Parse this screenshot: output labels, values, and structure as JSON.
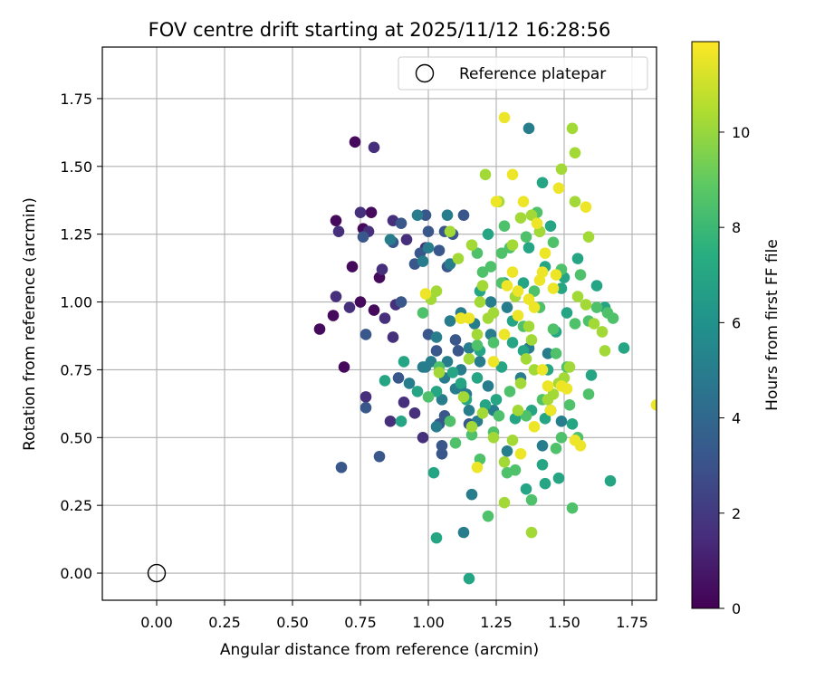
{
  "chart_data": {
    "type": "scatter",
    "title": "FOV centre drift starting at 2025/11/12 16:28:56",
    "xlabel": "Angular distance from reference (arcmin)",
    "ylabel": "Rotation from reference (arcmin)",
    "xlim": [
      -0.2,
      1.84
    ],
    "ylim": [
      -0.1,
      1.94
    ],
    "xticks": [
      "0.00",
      "0.25",
      "0.50",
      "0.75",
      "1.00",
      "1.25",
      "1.50",
      "1.75"
    ],
    "yticks": [
      "0.00",
      "0.25",
      "0.50",
      "0.75",
      "1.00",
      "1.25",
      "1.50",
      "1.75"
    ],
    "grid": true,
    "legend": {
      "position": "top-right",
      "label": "Reference platepar"
    },
    "reference_point": {
      "x": 0.0,
      "y": 0.0
    },
    "colorbar": {
      "label": "Hours from first FF file",
      "range": [
        0,
        11.9
      ],
      "ticks": [
        "0",
        "2",
        "4",
        "6",
        "8",
        "10"
      ],
      "colormap": "viridis"
    },
    "series": [
      {
        "color_value": 0.3,
        "points": [
          [
            0.6,
            0.9
          ],
          [
            0.69,
            0.76
          ],
          [
            0.73,
            1.59
          ],
          [
            0.66,
            1.3
          ],
          [
            0.72,
            1.13
          ],
          [
            0.75,
            1.0
          ],
          [
            0.65,
            0.95
          ],
          [
            0.79,
            1.33
          ],
          [
            0.82,
            1.09
          ],
          [
            0.8,
            0.97
          ],
          [
            0.76,
            1.27
          ]
        ]
      },
      {
        "color_value": 1.6,
        "points": [
          [
            0.8,
            1.57
          ],
          [
            0.75,
            1.33
          ],
          [
            0.78,
            1.26
          ],
          [
            0.67,
            1.26
          ],
          [
            0.71,
            0.98
          ],
          [
            0.66,
            1.02
          ],
          [
            0.87,
            1.3
          ],
          [
            0.83,
            1.12
          ],
          [
            0.92,
            1.23
          ],
          [
            0.99,
            1.2
          ],
          [
            0.88,
            0.99
          ],
          [
            0.84,
            0.94
          ],
          [
            0.87,
            0.87
          ],
          [
            0.98,
            0.5
          ],
          [
            0.95,
            0.59
          ],
          [
            0.86,
            0.56
          ],
          [
            0.91,
            0.63
          ],
          [
            0.77,
            0.65
          ]
        ]
      },
      {
        "color_value": 3.2,
        "points": [
          [
            0.68,
            0.39
          ],
          [
            0.82,
            0.43
          ],
          [
            0.77,
            0.61
          ],
          [
            0.77,
            0.88
          ],
          [
            0.76,
            1.24
          ],
          [
            0.87,
            1.22
          ],
          [
            0.9,
            1.29
          ],
          [
            0.99,
            1.32
          ],
          [
            1.0,
            1.26
          ],
          [
            1.04,
            1.19
          ],
          [
            1.06,
            1.26
          ],
          [
            1.09,
            1.25
          ],
          [
            1.13,
            1.32
          ],
          [
            1.07,
            1.13
          ],
          [
            0.95,
            1.14
          ],
          [
            0.97,
            1.18
          ],
          [
            1.0,
            0.88
          ],
          [
            1.03,
            0.82
          ],
          [
            1.1,
            0.86
          ],
          [
            1.06,
            0.58
          ],
          [
            1.04,
            0.55
          ],
          [
            1.05,
            0.47
          ],
          [
            1.05,
            0.44
          ],
          [
            1.11,
            0.82
          ],
          [
            1.15,
            0.55
          ],
          [
            0.89,
            0.72
          ],
          [
            0.9,
            1.0
          ]
        ]
      },
      {
        "color_value": 5.0,
        "points": [
          [
            1.13,
            0.15
          ],
          [
            1.16,
            0.29
          ],
          [
            1.37,
            1.64
          ],
          [
            0.86,
            1.23
          ],
          [
            0.96,
            1.32
          ],
          [
            1.0,
            1.2
          ],
          [
            1.08,
            1.14
          ],
          [
            1.07,
            1.32
          ],
          [
            0.98,
            1.15
          ],
          [
            1.12,
            0.96
          ],
          [
            1.08,
            0.93
          ],
          [
            1.03,
            0.87
          ],
          [
            0.99,
            0.76
          ],
          [
            1.07,
            0.78
          ],
          [
            1.12,
            0.75
          ],
          [
            1.1,
            0.68
          ],
          [
            1.14,
            0.66
          ],
          [
            1.05,
            0.64
          ],
          [
            1.15,
            0.6
          ],
          [
            1.03,
            0.54
          ],
          [
            1.15,
            0.83
          ],
          [
            1.19,
            0.78
          ],
          [
            1.22,
            0.69
          ],
          [
            1.18,
            0.56
          ],
          [
            1.24,
            0.6
          ],
          [
            1.29,
            0.45
          ],
          [
            1.34,
            0.72
          ],
          [
            1.42,
            0.47
          ],
          [
            1.45,
            0.6
          ],
          [
            1.29,
            0.98
          ],
          [
            1.17,
            0.92
          ],
          [
            1.23,
            1.0
          ],
          [
            1.37,
            0.83
          ],
          [
            1.44,
            0.81
          ],
          [
            1.49,
            0.56
          ],
          [
            0.93,
            0.7
          ],
          [
            0.98,
            0.76
          ],
          [
            1.06,
            0.72
          ],
          [
            1.01,
            0.78
          ],
          [
            1.12,
            0.69
          ],
          [
            1.23,
            0.88
          ]
        ]
      },
      {
        "color_value": 7.0,
        "points": [
          [
            1.02,
            0.37
          ],
          [
            1.03,
            0.13
          ],
          [
            1.15,
            -0.02
          ],
          [
            0.84,
            0.71
          ],
          [
            0.9,
            0.56
          ],
          [
            0.91,
            0.78
          ],
          [
            0.96,
            0.67
          ],
          [
            1.03,
            0.67
          ],
          [
            1.09,
            0.74
          ],
          [
            1.12,
            0.7
          ],
          [
            1.14,
            0.64
          ],
          [
            1.18,
            0.72
          ],
          [
            1.19,
            0.82
          ],
          [
            1.21,
            0.62
          ],
          [
            1.25,
            0.64
          ],
          [
            1.27,
            0.76
          ],
          [
            1.31,
            0.85
          ],
          [
            1.32,
            0.57
          ],
          [
            1.35,
            0.82
          ],
          [
            1.38,
            0.6
          ],
          [
            1.43,
            0.57
          ],
          [
            1.22,
            1.25
          ],
          [
            1.19,
            1.04
          ],
          [
            1.28,
            1.07
          ],
          [
            1.31,
            0.93
          ],
          [
            1.35,
            1.07
          ],
          [
            1.37,
            1.2
          ],
          [
            1.42,
            1.44
          ],
          [
            1.45,
            1.28
          ],
          [
            1.49,
            1.05
          ],
          [
            1.43,
            1.13
          ],
          [
            1.47,
            0.89
          ],
          [
            1.44,
            0.75
          ],
          [
            1.5,
            1.09
          ],
          [
            1.51,
            0.96
          ],
          [
            1.55,
            1.16
          ],
          [
            1.62,
            1.06
          ],
          [
            1.65,
            0.98
          ],
          [
            1.67,
            0.34
          ],
          [
            1.6,
            0.73
          ],
          [
            1.72,
            0.83
          ],
          [
            1.53,
            0.55
          ],
          [
            1.48,
            0.35
          ],
          [
            1.43,
            0.33
          ],
          [
            1.42,
            0.4
          ],
          [
            1.36,
            0.31
          ]
        ]
      },
      {
        "color_value": 8.5,
        "points": [
          [
            1.22,
            0.21
          ],
          [
            1.29,
            0.37
          ],
          [
            1.36,
            0.58
          ],
          [
            1.32,
            0.38
          ],
          [
            1.38,
            0.27
          ],
          [
            1.49,
            0.5
          ],
          [
            1.47,
            0.46
          ],
          [
            1.52,
            0.62
          ],
          [
            1.53,
            0.24
          ],
          [
            1.55,
            0.5
          ],
          [
            1.59,
            0.66
          ],
          [
            1.16,
            0.51
          ],
          [
            1.19,
            0.42
          ],
          [
            1.24,
            0.52
          ],
          [
            1.3,
            0.67
          ],
          [
            1.35,
            0.91
          ],
          [
            1.39,
            1.04
          ],
          [
            1.41,
            0.98
          ],
          [
            1.46,
            0.9
          ],
          [
            1.56,
            1.1
          ],
          [
            1.54,
            0.92
          ],
          [
            1.66,
            0.96
          ],
          [
            1.68,
            0.94
          ],
          [
            1.62,
            0.98
          ],
          [
            1.59,
            0.93
          ],
          [
            1.47,
            0.81
          ],
          [
            1.51,
            0.76
          ],
          [
            1.42,
            0.64
          ],
          [
            1.18,
            0.84
          ],
          [
            1.24,
            0.85
          ],
          [
            1.23,
            1.13
          ],
          [
            1.27,
            1.18
          ],
          [
            1.3,
            1.2
          ],
          [
            1.36,
            1.24
          ],
          [
            1.4,
            1.33
          ],
          [
            1.46,
            1.22
          ],
          [
            1.49,
            1.12
          ],
          [
            1.41,
            1.26
          ],
          [
            1.28,
            1.28
          ],
          [
            1.27,
            1.07
          ],
          [
            1.18,
            1.18
          ],
          [
            1.2,
            1.11
          ],
          [
            1.26,
            0.58
          ],
          [
            1.1,
            0.48
          ],
          [
            1.08,
            0.56
          ],
          [
            1.0,
            0.65
          ],
          [
            0.98,
            0.96
          ],
          [
            1.04,
            0.76
          ]
        ]
      },
      {
        "color_value": 10.2,
        "points": [
          [
            1.21,
            1.47
          ],
          [
            1.26,
            1.37
          ],
          [
            1.31,
            1.21
          ],
          [
            1.34,
            1.31
          ],
          [
            1.38,
            1.32
          ],
          [
            1.41,
            1.26
          ],
          [
            1.49,
            1.49
          ],
          [
            1.53,
            1.64
          ],
          [
            1.54,
            1.55
          ],
          [
            1.54,
            1.37
          ],
          [
            1.59,
            1.24
          ],
          [
            1.55,
            1.02
          ],
          [
            1.61,
            0.92
          ],
          [
            1.58,
            0.99
          ],
          [
            1.64,
            0.89
          ],
          [
            1.65,
            0.82
          ],
          [
            1.52,
            0.76
          ],
          [
            1.5,
            0.72
          ],
          [
            1.48,
            0.7
          ],
          [
            1.46,
            0.66
          ],
          [
            1.44,
            0.64
          ],
          [
            1.39,
            0.75
          ],
          [
            1.38,
            0.86
          ],
          [
            1.36,
            0.79
          ],
          [
            1.34,
            0.7
          ],
          [
            1.33,
            0.6
          ],
          [
            1.31,
            0.49
          ],
          [
            1.28,
            0.41
          ],
          [
            1.24,
            0.5
          ],
          [
            1.2,
            0.59
          ],
          [
            1.16,
            0.54
          ],
          [
            1.13,
            0.65
          ],
          [
            1.15,
            0.79
          ],
          [
            1.18,
            0.88
          ],
          [
            1.22,
            0.94
          ],
          [
            1.19,
            1.0
          ],
          [
            1.2,
            1.06
          ],
          [
            1.16,
            1.21
          ],
          [
            1.11,
            1.16
          ],
          [
            1.08,
            1.26
          ],
          [
            1.03,
            1.04
          ],
          [
            1.01,
            1.01
          ],
          [
            1.04,
            0.74
          ],
          [
            1.12,
            0.94
          ],
          [
            1.28,
            0.26
          ],
          [
            1.38,
            0.15
          ],
          [
            1.24,
            0.96
          ],
          [
            1.32,
            1.02
          ],
          [
            1.37,
            0.91
          ]
        ]
      },
      {
        "color_value": 11.6,
        "points": [
          [
            1.28,
            1.68
          ],
          [
            1.31,
            1.47
          ],
          [
            1.48,
            1.42
          ],
          [
            1.58,
            1.35
          ],
          [
            1.35,
            1.37
          ],
          [
            1.25,
            1.37
          ],
          [
            1.4,
            1.29
          ],
          [
            1.43,
            1.18
          ],
          [
            1.46,
            1.05
          ],
          [
            1.47,
            1.1
          ],
          [
            1.42,
            1.11
          ],
          [
            1.41,
            1.08
          ],
          [
            1.37,
            1.01
          ],
          [
            1.33,
            1.04
          ],
          [
            1.31,
            1.11
          ],
          [
            1.28,
            0.88
          ],
          [
            1.33,
            0.95
          ],
          [
            1.39,
            0.98
          ],
          [
            1.42,
            0.75
          ],
          [
            1.45,
            0.6
          ],
          [
            1.39,
            0.54
          ],
          [
            1.34,
            0.44
          ],
          [
            1.44,
            0.69
          ],
          [
            1.49,
            0.69
          ],
          [
            1.51,
            0.68
          ],
          [
            1.54,
            0.49
          ],
          [
            1.56,
            0.47
          ],
          [
            1.18,
            0.39
          ],
          [
            1.12,
            0.94
          ],
          [
            1.15,
            0.94
          ],
          [
            0.99,
            1.03
          ],
          [
            1.84,
            0.62
          ],
          [
            1.24,
            0.78
          ],
          [
            1.29,
            1.06
          ]
        ]
      }
    ]
  }
}
